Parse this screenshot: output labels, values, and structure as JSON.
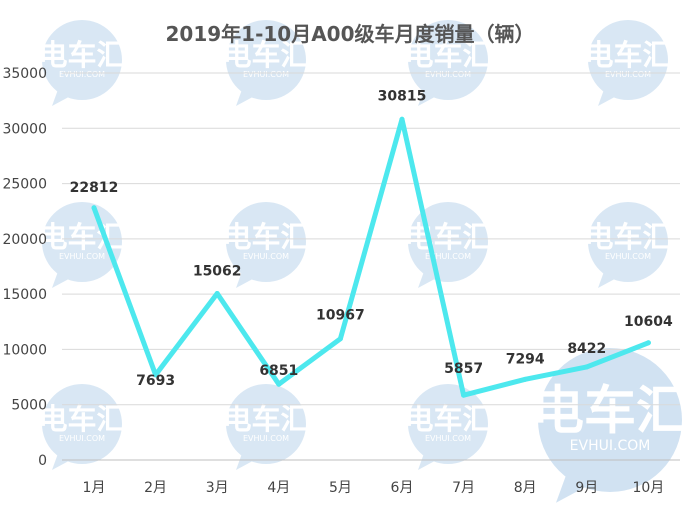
{
  "chart_data": {
    "type": "line",
    "title": "2019年1-10月A00级车月度销量（辆）",
    "categories": [
      "1月",
      "2月",
      "3月",
      "4月",
      "5月",
      "6月",
      "7月",
      "8月",
      "9月",
      "10月"
    ],
    "series": [
      {
        "name": "A00级车月度销量",
        "values": [
          22812,
          7693,
          15062,
          6851,
          10967,
          30815,
          5857,
          7294,
          8422,
          10604
        ],
        "color": "#4de8ee"
      }
    ],
    "data_labels": [
      "22812",
      "7693",
      "15062",
      "6851",
      "10967",
      "30815",
      "5857",
      "7294",
      "8422",
      "10604"
    ],
    "yticks": [
      "0",
      "5000",
      "10000",
      "15000",
      "20000",
      "25000",
      "30000",
      "35000"
    ],
    "ylim": [
      0,
      35000
    ],
    "ytick_step": 5000,
    "xlabel": "",
    "ylabel": "",
    "grid": true,
    "legend": "none"
  },
  "watermark": {
    "text": "电车汇",
    "subtext": "EVHUI.COM",
    "color": "#c9def0"
  }
}
